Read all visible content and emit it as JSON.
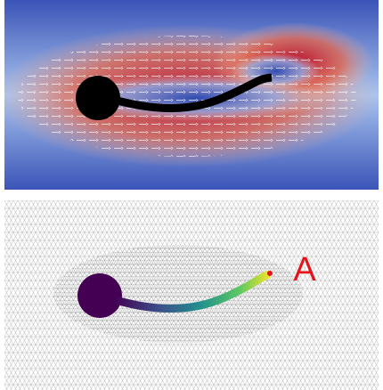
{
  "annotations": {
    "point_label": "A"
  }
}
